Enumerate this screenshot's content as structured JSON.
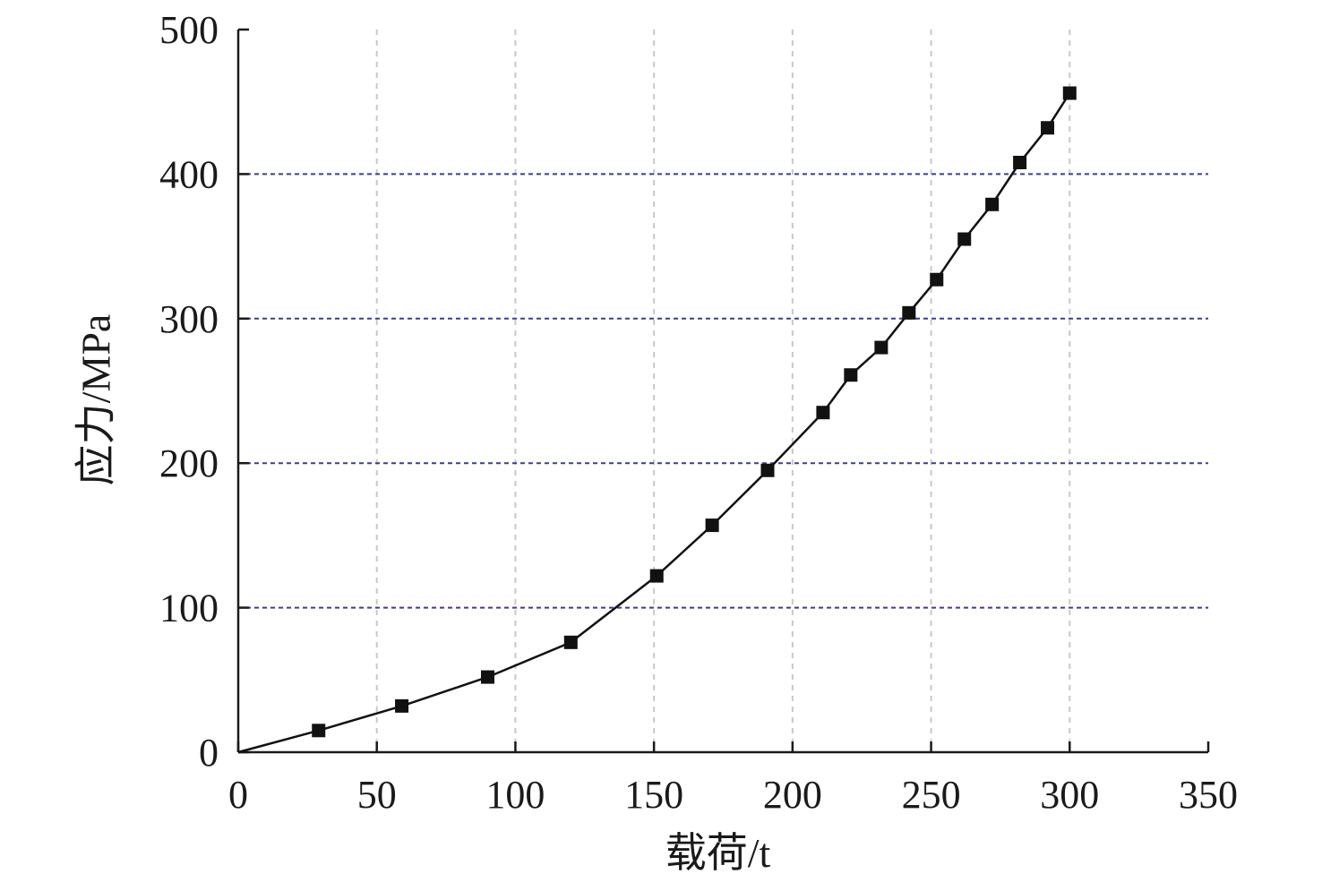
{
  "chart_data": {
    "type": "line",
    "title": "",
    "xlabel": "载荷/t",
    "ylabel": "应力/MPa",
    "xlim": [
      0,
      350
    ],
    "ylim": [
      0,
      500
    ],
    "x_ticks": [
      0,
      50,
      100,
      150,
      200,
      250,
      300,
      350
    ],
    "y_ticks": [
      0,
      100,
      200,
      300,
      400,
      500
    ],
    "grid": {
      "x": true,
      "y": true,
      "x_style": "dashed",
      "y_style": "dashed",
      "x_color": "#c8c8c8",
      "y_color": "#3b3f8f"
    },
    "line_color": "#111111",
    "marker": "square",
    "marker_color": "#111111",
    "series": [
      {
        "points": [
          [
            0,
            0
          ],
          [
            29,
            15
          ],
          [
            59,
            32
          ],
          [
            90,
            52
          ],
          [
            120,
            76
          ],
          [
            151,
            122
          ],
          [
            171,
            157
          ],
          [
            191,
            195
          ],
          [
            211,
            235
          ],
          [
            221,
            261
          ],
          [
            232,
            280
          ],
          [
            242,
            304
          ],
          [
            252,
            327
          ],
          [
            262,
            355
          ],
          [
            272,
            379
          ],
          [
            282,
            408
          ],
          [
            292,
            432
          ],
          [
            300,
            456
          ]
        ]
      }
    ]
  }
}
